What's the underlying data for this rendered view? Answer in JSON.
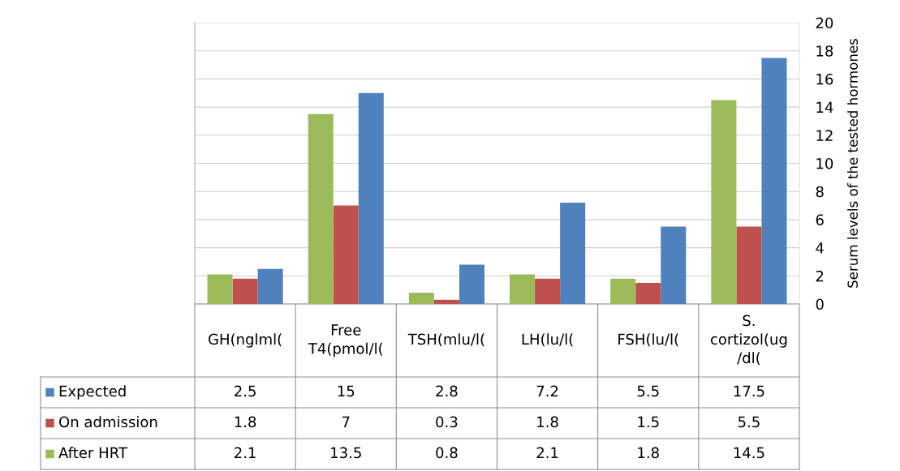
{
  "chart_data": {
    "type": "bar",
    "ylabel": "Serum levels of the tested hormones",
    "categories": [
      "GH(nglml(",
      "Free\nT4(pmol/l(",
      "TSH(mlu/l(",
      "LH(lu/l(",
      "FSH(lu/l(",
      "S.\ncortizol(ug\n/dl("
    ],
    "series": [
      {
        "name": "Expected",
        "color": "#4f81bd",
        "values": [
          2.5,
          15,
          2.8,
          7.2,
          5.5,
          17.5
        ]
      },
      {
        "name": "On admission",
        "color": "#c0504d",
        "values": [
          1.8,
          7,
          0.3,
          1.8,
          1.5,
          5.5
        ]
      },
      {
        "name": "After HRT",
        "color": "#9bbb59",
        "values": [
          2.1,
          13.5,
          0.8,
          2.1,
          1.8,
          14.5
        ]
      }
    ],
    "ylim": [
      0,
      20
    ],
    "yticks": [
      0,
      2,
      4,
      6,
      8,
      10,
      12,
      14,
      16,
      18,
      20
    ],
    "grid": "y",
    "data_labels": true,
    "legend": "bottom left"
  }
}
